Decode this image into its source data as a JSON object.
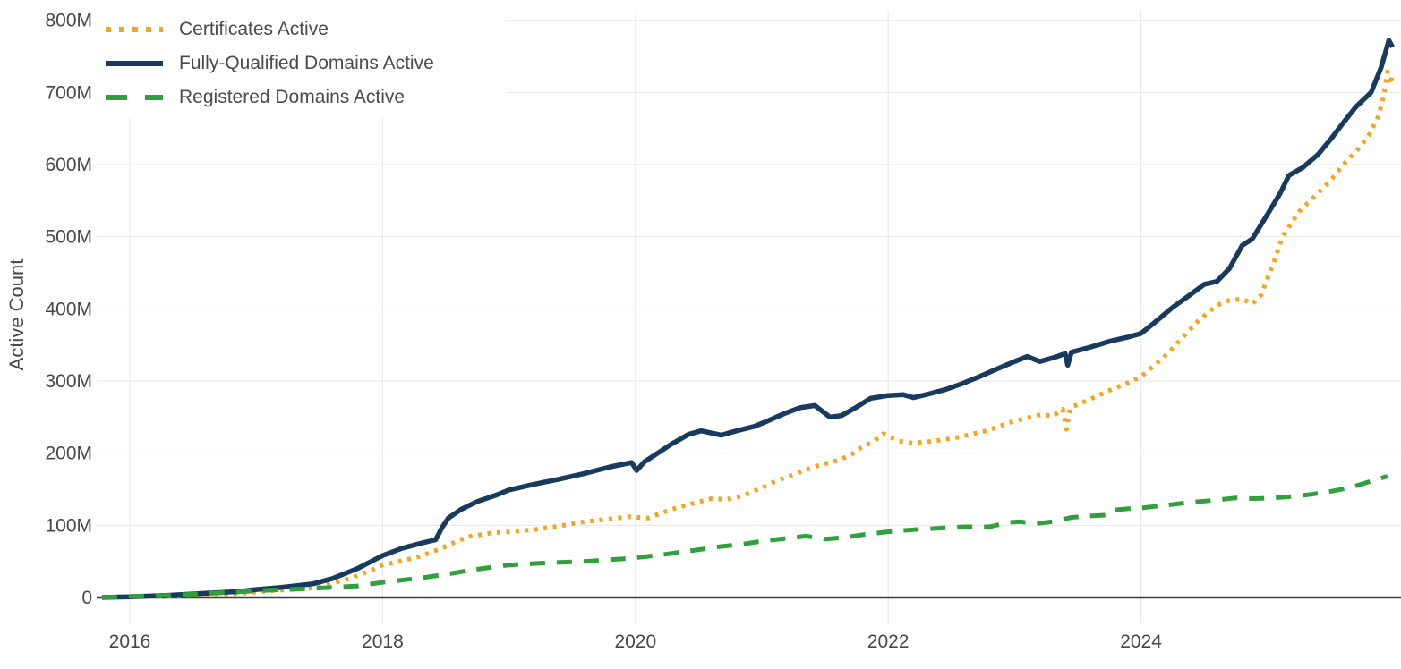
{
  "chart_data": {
    "type": "line",
    "title": "",
    "xlabel": "",
    "ylabel": "Active Count",
    "legend_position": "top-left-inside",
    "grid": true,
    "xlim": [
      2015.75,
      2026.05
    ],
    "ylim": [
      0,
      800
    ],
    "y_unit": "millions",
    "x_ticks": [
      {
        "label": "2016",
        "value": 2016
      },
      {
        "label": "2018",
        "value": 2018
      },
      {
        "label": "2020",
        "value": 2020
      },
      {
        "label": "2022",
        "value": 2022
      },
      {
        "label": "2024",
        "value": 2024
      }
    ],
    "y_ticks": [
      {
        "label": "0",
        "value": 0
      },
      {
        "label": "100M",
        "value": 100
      },
      {
        "label": "200M",
        "value": 200
      },
      {
        "label": "300M",
        "value": 300
      },
      {
        "label": "400M",
        "value": 400
      },
      {
        "label": "500M",
        "value": 500
      },
      {
        "label": "600M",
        "value": 600
      },
      {
        "label": "700M",
        "value": 700
      },
      {
        "label": "800M",
        "value": 800
      }
    ],
    "colors": {
      "grid": "#EAEAEA",
      "zeroline": "#3C3C3C",
      "axis_text": "#474747"
    },
    "series": [
      {
        "name": "Certificates Active",
        "color": "#F4A41D",
        "line_style": "dotted",
        "points": [
          [
            2015.78,
            0
          ],
          [
            2016.1,
            1
          ],
          [
            2016.5,
            3
          ],
          [
            2016.9,
            6
          ],
          [
            2017.1,
            9
          ],
          [
            2017.45,
            13
          ],
          [
            2017.7,
            24
          ],
          [
            2017.9,
            37
          ],
          [
            2018.0,
            45
          ],
          [
            2018.15,
            51
          ],
          [
            2018.3,
            57
          ],
          [
            2018.45,
            67
          ],
          [
            2018.6,
            79
          ],
          [
            2018.7,
            85
          ],
          [
            2018.85,
            89
          ],
          [
            2019.0,
            91
          ],
          [
            2019.2,
            94
          ],
          [
            2019.4,
            99
          ],
          [
            2019.6,
            105
          ],
          [
            2019.8,
            109
          ],
          [
            2019.95,
            112
          ],
          [
            2020.1,
            110
          ],
          [
            2020.28,
            122
          ],
          [
            2020.45,
            130
          ],
          [
            2020.6,
            137
          ],
          [
            2020.72,
            136
          ],
          [
            2020.85,
            141
          ],
          [
            2021.0,
            152
          ],
          [
            2021.12,
            162
          ],
          [
            2021.25,
            170
          ],
          [
            2021.35,
            177
          ],
          [
            2021.45,
            183
          ],
          [
            2021.6,
            190
          ],
          [
            2021.7,
            197
          ],
          [
            2021.78,
            207
          ],
          [
            2021.88,
            216
          ],
          [
            2021.96,
            227
          ],
          [
            2022.08,
            217
          ],
          [
            2022.2,
            214
          ],
          [
            2022.32,
            216
          ],
          [
            2022.45,
            219
          ],
          [
            2022.55,
            222
          ],
          [
            2022.7,
            228
          ],
          [
            2022.8,
            232
          ],
          [
            2022.95,
            242
          ],
          [
            2023.1,
            249
          ],
          [
            2023.22,
            254
          ],
          [
            2023.3,
            251
          ],
          [
            2023.38,
            261
          ],
          [
            2023.41,
            233
          ],
          [
            2023.44,
            263
          ],
          [
            2023.6,
            275
          ],
          [
            2023.75,
            287
          ],
          [
            2023.9,
            298
          ],
          [
            2024.0,
            306
          ],
          [
            2024.18,
            333
          ],
          [
            2024.3,
            355
          ],
          [
            2024.45,
            383
          ],
          [
            2024.6,
            405
          ],
          [
            2024.7,
            412
          ],
          [
            2024.8,
            414
          ],
          [
            2024.88,
            407
          ],
          [
            2024.95,
            419
          ],
          [
            2025.05,
            465
          ],
          [
            2025.12,
            500
          ],
          [
            2025.25,
            535
          ],
          [
            2025.35,
            552
          ],
          [
            2025.5,
            578
          ],
          [
            2025.6,
            600
          ],
          [
            2025.72,
            622
          ],
          [
            2025.8,
            640
          ],
          [
            2025.88,
            668
          ],
          [
            2025.92,
            696
          ],
          [
            2025.95,
            729
          ],
          [
            2025.97,
            711
          ],
          [
            2025.99,
            724
          ]
        ]
      },
      {
        "name": "Fully-Qualified Domains Active",
        "color": "#183A5F",
        "line_style": "solid",
        "points": [
          [
            2015.78,
            0
          ],
          [
            2016.0,
            1
          ],
          [
            2016.3,
            3
          ],
          [
            2016.6,
            6
          ],
          [
            2016.85,
            8
          ],
          [
            2017.0,
            11
          ],
          [
            2017.2,
            14
          ],
          [
            2017.45,
            19
          ],
          [
            2017.6,
            26
          ],
          [
            2017.8,
            40
          ],
          [
            2018.0,
            58
          ],
          [
            2018.15,
            68
          ],
          [
            2018.3,
            75
          ],
          [
            2018.42,
            80
          ],
          [
            2018.47,
            97
          ],
          [
            2018.52,
            110
          ],
          [
            2018.62,
            122
          ],
          [
            2018.75,
            133
          ],
          [
            2018.9,
            142
          ],
          [
            2019.0,
            149
          ],
          [
            2019.2,
            157
          ],
          [
            2019.4,
            164
          ],
          [
            2019.6,
            172
          ],
          [
            2019.8,
            181
          ],
          [
            2019.97,
            187
          ],
          [
            2020.01,
            176
          ],
          [
            2020.07,
            188
          ],
          [
            2020.15,
            197
          ],
          [
            2020.28,
            212
          ],
          [
            2020.42,
            226
          ],
          [
            2020.52,
            231
          ],
          [
            2020.68,
            225
          ],
          [
            2020.8,
            231
          ],
          [
            2020.94,
            237
          ],
          [
            2021.05,
            245
          ],
          [
            2021.18,
            255
          ],
          [
            2021.3,
            263
          ],
          [
            2021.42,
            266
          ],
          [
            2021.54,
            250
          ],
          [
            2021.63,
            252
          ],
          [
            2021.75,
            264
          ],
          [
            2021.86,
            276
          ],
          [
            2022.0,
            280
          ],
          [
            2022.12,
            281
          ],
          [
            2022.2,
            277
          ],
          [
            2022.32,
            282
          ],
          [
            2022.45,
            288
          ],
          [
            2022.58,
            296
          ],
          [
            2022.72,
            306
          ],
          [
            2022.85,
            316
          ],
          [
            2023.0,
            327
          ],
          [
            2023.1,
            334
          ],
          [
            2023.2,
            327
          ],
          [
            2023.32,
            333
          ],
          [
            2023.4,
            338
          ],
          [
            2023.42,
            322
          ],
          [
            2023.45,
            340
          ],
          [
            2023.6,
            347
          ],
          [
            2023.75,
            355
          ],
          [
            2023.9,
            361
          ],
          [
            2024.0,
            366
          ],
          [
            2024.1,
            380
          ],
          [
            2024.25,
            402
          ],
          [
            2024.4,
            421
          ],
          [
            2024.5,
            434
          ],
          [
            2024.6,
            438
          ],
          [
            2024.7,
            456
          ],
          [
            2024.8,
            488
          ],
          [
            2024.88,
            497
          ],
          [
            2025.0,
            531
          ],
          [
            2025.1,
            560
          ],
          [
            2025.17,
            585
          ],
          [
            2025.28,
            596
          ],
          [
            2025.4,
            614
          ],
          [
            2025.5,
            635
          ],
          [
            2025.6,
            658
          ],
          [
            2025.7,
            680
          ],
          [
            2025.82,
            700
          ],
          [
            2025.9,
            735
          ],
          [
            2025.96,
            772
          ],
          [
            2025.99,
            763
          ]
        ]
      },
      {
        "name": "Registered Domains Active",
        "color": "#2FA03C",
        "line_style": "dashed",
        "points": [
          [
            2015.78,
            0
          ],
          [
            2016.0,
            1.5
          ],
          [
            2016.3,
            3
          ],
          [
            2016.6,
            5.5
          ],
          [
            2016.9,
            8
          ],
          [
            2017.1,
            10
          ],
          [
            2017.45,
            12.5
          ],
          [
            2017.8,
            16
          ],
          [
            2018.0,
            21
          ],
          [
            2018.3,
            27
          ],
          [
            2018.5,
            32
          ],
          [
            2018.7,
            38
          ],
          [
            2019.0,
            45
          ],
          [
            2019.3,
            48
          ],
          [
            2019.6,
            50
          ],
          [
            2019.95,
            54
          ],
          [
            2020.2,
            59
          ],
          [
            2020.45,
            65
          ],
          [
            2020.65,
            70
          ],
          [
            2020.85,
            74
          ],
          [
            2021.0,
            78
          ],
          [
            2021.2,
            82
          ],
          [
            2021.35,
            85
          ],
          [
            2021.5,
            81
          ],
          [
            2021.65,
            83
          ],
          [
            2021.8,
            87
          ],
          [
            2022.0,
            91
          ],
          [
            2022.2,
            94
          ],
          [
            2022.4,
            96
          ],
          [
            2022.6,
            98
          ],
          [
            2022.8,
            98
          ],
          [
            2022.95,
            104
          ],
          [
            2023.05,
            105
          ],
          [
            2023.15,
            102
          ],
          [
            2023.3,
            105
          ],
          [
            2023.45,
            111
          ],
          [
            2023.6,
            113
          ],
          [
            2023.72,
            114
          ],
          [
            2023.78,
            121
          ],
          [
            2023.9,
            123
          ],
          [
            2024.0,
            124
          ],
          [
            2024.2,
            128
          ],
          [
            2024.4,
            132
          ],
          [
            2024.6,
            135
          ],
          [
            2024.75,
            138
          ],
          [
            2024.9,
            137
          ],
          [
            2025.05,
            138
          ],
          [
            2025.2,
            140
          ],
          [
            2025.35,
            143
          ],
          [
            2025.5,
            147
          ],
          [
            2025.65,
            152
          ],
          [
            2025.8,
            160
          ],
          [
            2025.95,
            168
          ]
        ]
      }
    ]
  }
}
